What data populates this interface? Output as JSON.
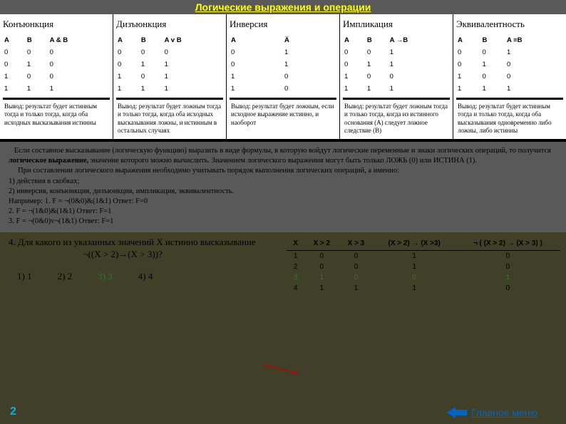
{
  "title": "Логические выражения и операции",
  "operations": [
    {
      "name": "Конъюнкция",
      "headers": [
        "A",
        "B",
        "A & B"
      ],
      "rows": [
        [
          "0",
          "0",
          "0"
        ],
        [
          "0",
          "1",
          "0"
        ],
        [
          "1",
          "0",
          "0"
        ],
        [
          "1",
          "1",
          "1"
        ]
      ],
      "conclusion": "Вывод: результат будет истинным тогда и только тогда, когда оба исходных высказывания истинны"
    },
    {
      "name": "Дизъюнкция",
      "headers": [
        "A",
        "B",
        "A v B"
      ],
      "rows": [
        [
          "0",
          "0",
          "0"
        ],
        [
          "0",
          "1",
          "1"
        ],
        [
          "1",
          "0",
          "1"
        ],
        [
          "1",
          "1",
          "1"
        ]
      ],
      "conclusion": "Вывод: результат будет ложным тогда и только тогда, когда оба исходных высказывания ложны, и истинным в остальных случаях"
    },
    {
      "name": "Инверсия",
      "headers": [
        "A",
        "A̅"
      ],
      "rows": [
        [
          "0",
          "1"
        ],
        [
          "0",
          "1"
        ],
        [
          "1",
          "0"
        ],
        [
          "1",
          "0"
        ]
      ],
      "conclusion": "Вывод: результат будет ложным, если исходное выражение истинно, и наоборот"
    },
    {
      "name": "Импликация",
      "headers": [
        "A",
        "B",
        "A →B"
      ],
      "rows": [
        [
          "0",
          "0",
          "1"
        ],
        [
          "0",
          "1",
          "1"
        ],
        [
          "1",
          "0",
          "0"
        ],
        [
          "1",
          "1",
          "1"
        ]
      ],
      "conclusion": "Вывод: результат будет ложным тогда и только тогда, когда из истинного основания (А) следует ложное следствие (В)"
    },
    {
      "name": "Эквивалентность",
      "headers": [
        "A",
        "B",
        "A ≡B"
      ],
      "rows": [
        [
          "0",
          "0",
          "1"
        ],
        [
          "0",
          "1",
          "0"
        ],
        [
          "1",
          "0",
          "0"
        ],
        [
          "1",
          "1",
          "1"
        ]
      ],
      "conclusion": "Вывод: результат будет истинным тогда и только тогда, когда оба высказывания одновременно либо ложны, либо истинны"
    }
  ],
  "middle": {
    "p1a": "Если составное высказывание (логическую функцию) выразить в виде формулы, в которую войдут логические переменные и знаки логических операций, то получится ",
    "p1b": "логическое выражение,",
    "p1c": " значение которого можно вычислить. Значением логического выражения могут быть только ЛОЖЬ (0) или ИСТИНА (1).",
    "p2": "При составлении логического выражения необходимо учитывать порядок выполнения логических операций, а именно:",
    "li1": "1)  действия в скобках;",
    "li2": "2)  инверсия, конъюнкция, дизъюнкция, импликация, эквивалентность.",
    "ex_label": "Например:",
    "ex1": "1. F = ¬(0&0)&(1&1)  Ответ: F=0",
    "ex2": "2. F =  ¬(1&0)&(1&1)  Ответ: F=1",
    "ex3": "3. F =  ¬(0&0)v¬(1&1)  Ответ: F=1"
  },
  "question": {
    "num": "4.",
    "text": "Для какого из указанных значений X истинно высказывание",
    "formula": "¬((X > 2)→(X > 3))?",
    "answers": [
      {
        "label": "1) 1",
        "green": false
      },
      {
        "label": "2) 2",
        "green": false
      },
      {
        "label": "3) 3",
        "green": true
      },
      {
        "label": "4) 4",
        "green": false
      }
    ]
  },
  "result_table": {
    "headers": [
      "X",
      "X > 2",
      "X > 3",
      "(X > 2) → (X >3)",
      "¬ ( (X > 2) → (X > 3) )"
    ],
    "rows": [
      {
        "cells": [
          "1",
          "0",
          "0",
          "1",
          "0"
        ],
        "hl": false
      },
      {
        "cells": [
          "2",
          "0",
          "0",
          "1",
          "0"
        ],
        "hl": false
      },
      {
        "cells": [
          "3",
          "1",
          "0",
          "0",
          "1"
        ],
        "hl": true
      },
      {
        "cells": [
          "4",
          "1",
          "1",
          "1",
          "0"
        ],
        "hl": false
      }
    ]
  },
  "page_number": "2",
  "main_menu": "Главное меню",
  "colors": {
    "bg": "#404028",
    "title_bg": "#595959",
    "title_fg": "#ffff00",
    "link": "#0563c1",
    "pagenum": "#00b0f0",
    "green": "#2a7a2a",
    "red_arrow": "#c00000"
  }
}
